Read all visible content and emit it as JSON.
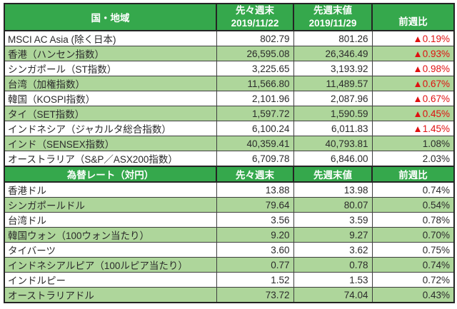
{
  "colors": {
    "header_green": "#35a84c",
    "band_green": "#aed69b",
    "negative_red": "#e01111",
    "text_dark": "#2b2b2b",
    "grid_dark": "#242424",
    "background": "#ffffff"
  },
  "negative_marker": "▲",
  "chart_data": [
    {
      "type": "table",
      "header": {
        "region_label": "国・地域",
        "prev_label": "先々週末",
        "prev_date": "2019/11/22",
        "last_label": "先週末値",
        "last_date": "2019/11/29",
        "change_label": "前週比"
      },
      "rows": [
        {
          "name": "MSCI AC Asia (除く日本)",
          "prev": "802.79",
          "last": "801.26",
          "change": "▲0.19%"
        },
        {
          "name": "香港（ハンセン指数）",
          "prev": "26,595.08",
          "last": "26,346.49",
          "change": "▲0.93%"
        },
        {
          "name": "シンガポール（ST指数）",
          "prev": "3,225.65",
          "last": "3,193.92",
          "change": "▲0.98%"
        },
        {
          "name": "台湾（加権指数）",
          "prev": "11,566.80",
          "last": "11,489.57",
          "change": "▲0.67%"
        },
        {
          "name": "韓国（KOSPI指数）",
          "prev": "2,101.96",
          "last": "2,087.96",
          "change": "▲0.67%"
        },
        {
          "name": "タイ（SET指数）",
          "prev": "1,597.72",
          "last": "1,590.59",
          "change": "▲0.45%"
        },
        {
          "name": "インドネシア（ジャカルタ総合指数）",
          "prev": "6,100.24",
          "last": "6,011.83",
          "change": "▲1.45%"
        },
        {
          "name": "インド（SENSEX指数）",
          "prev": "40,359.41",
          "last": "40,793.81",
          "change": "1.08%"
        },
        {
          "name": "オーストラリア（S&P／ASX200指数）",
          "prev": "6,709.78",
          "last": "6,846.00",
          "change": "2.03%"
        }
      ]
    },
    {
      "type": "table",
      "header": {
        "title": "為替レート（対円）",
        "prev_label": "先々週末",
        "last_label": "先週末値",
        "change_label": "前週比"
      },
      "rows": [
        {
          "name": "香港ドル",
          "prev": "13.88",
          "last": "13.98",
          "change": "0.74%"
        },
        {
          "name": "シンガポールドル",
          "prev": "79.64",
          "last": "80.07",
          "change": "0.54%"
        },
        {
          "name": "台湾ドル",
          "prev": "3.56",
          "last": "3.59",
          "change": "0.78%"
        },
        {
          "name": "韓国ウォン（100ウォン当たり）",
          "prev": "9.20",
          "last": "9.27",
          "change": "0.70%"
        },
        {
          "name": "タイバーツ",
          "prev": "3.60",
          "last": "3.62",
          "change": "0.75%"
        },
        {
          "name": "インドネシアルピア（100ルピア当たり）",
          "prev": "0.77",
          "last": "0.78",
          "change": "0.74%"
        },
        {
          "name": "インドルピー",
          "prev": "1.52",
          "last": "1.53",
          "change": "0.72%"
        },
        {
          "name": "オーストラリアドル",
          "prev": "73.72",
          "last": "74.04",
          "change": "0.43%"
        }
      ]
    }
  ]
}
